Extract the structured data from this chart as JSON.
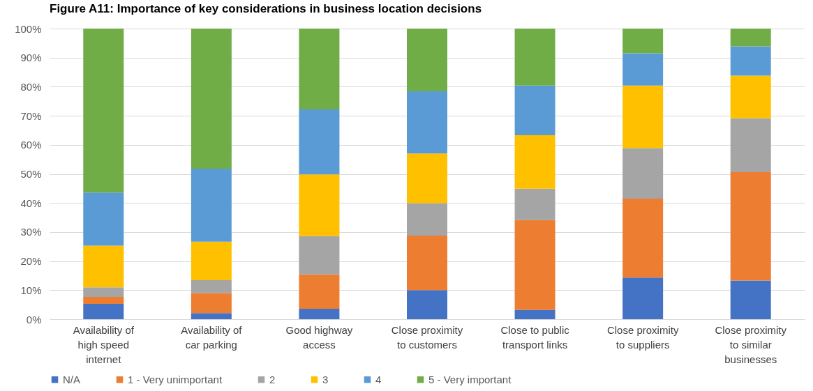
{
  "chart_data": {
    "type": "bar",
    "title": "Figure A11: Importance of key considerations in business location decisions",
    "stacked": true,
    "legend": "bottom",
    "grid": "y",
    "categories": [
      "Availability of high speed internet",
      "Availability of car parking",
      "Good highway access",
      "Close proximity to customers",
      "Close to public transport links",
      "Close proximity to suppliers",
      "Close proximity to similar businesses"
    ],
    "ylim": [
      0,
      100
    ],
    "yticks": [
      {
        "value": 0,
        "label": "0%"
      },
      {
        "value": 10,
        "label": "10%"
      },
      {
        "value": 20,
        "label": "20%"
      },
      {
        "value": 30,
        "label": "30%"
      },
      {
        "value": 40,
        "label": "40%"
      },
      {
        "value": 50,
        "label": "50%"
      },
      {
        "value": 60,
        "label": "60%"
      },
      {
        "value": 70,
        "label": "70%"
      },
      {
        "value": 80,
        "label": "80%"
      },
      {
        "value": 90,
        "label": "90%"
      },
      {
        "value": 100,
        "label": "100%"
      }
    ],
    "series": [
      {
        "name": "N/A",
        "color": "#4472c4",
        "values": [
          5.3,
          2.1,
          3.6,
          10.0,
          3.2,
          14.3,
          13.3
        ]
      },
      {
        "name": "1 - Very unimportant",
        "color": "#ed7d31",
        "values": [
          2.4,
          6.9,
          11.8,
          18.8,
          30.9,
          27.2,
          37.3
        ]
      },
      {
        "name": "2",
        "color": "#a5a5a5",
        "values": [
          3.3,
          4.4,
          13.2,
          11.1,
          10.8,
          17.4,
          18.5
        ]
      },
      {
        "name": "3",
        "color": "#ffc000",
        "values": [
          14.3,
          13.3,
          21.2,
          17.1,
          18.4,
          21.5,
          14.7
        ]
      },
      {
        "name": "4",
        "color": "#5b9bd5",
        "values": [
          18.3,
          25.1,
          22.4,
          21.4,
          17.1,
          11.1,
          10.1
        ]
      },
      {
        "name": "5 - Very important",
        "color": "#70ad47",
        "values": [
          56.4,
          48.2,
          27.8,
          21.6,
          19.6,
          8.5,
          6.1
        ]
      }
    ]
  }
}
